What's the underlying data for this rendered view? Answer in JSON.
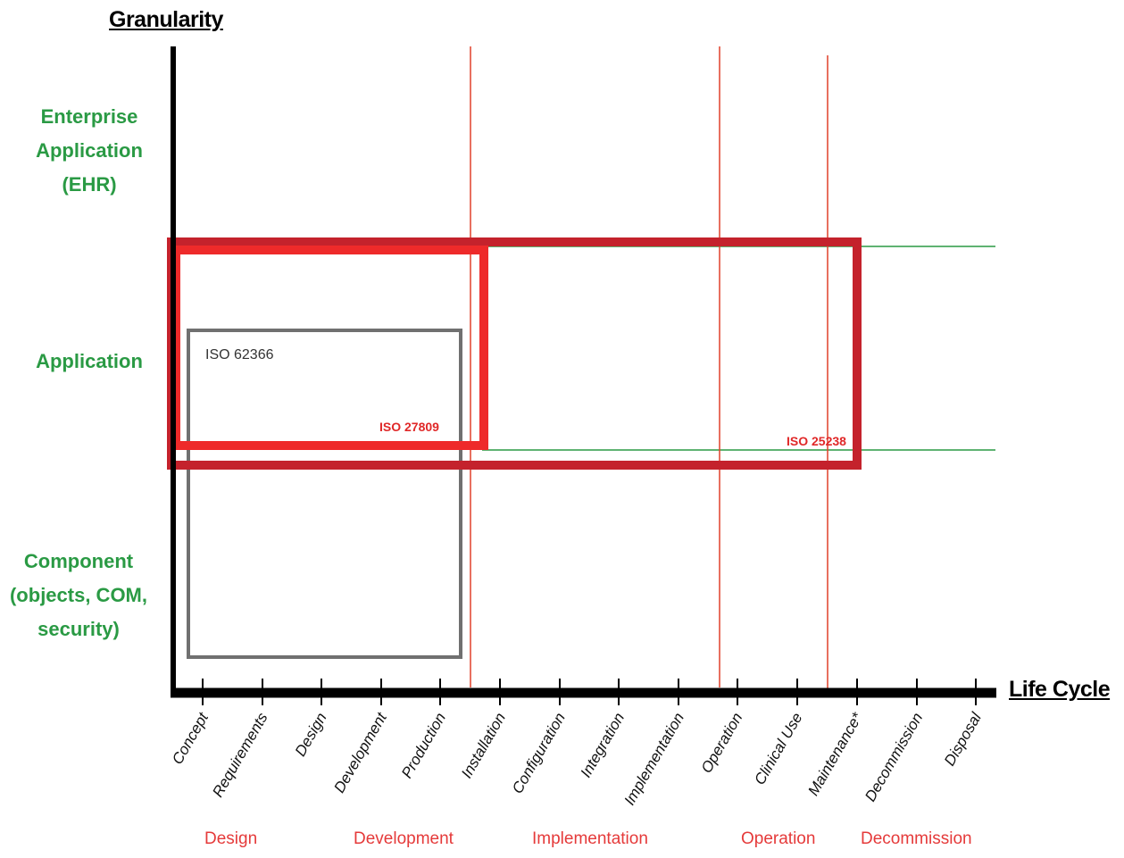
{
  "axes": {
    "y_title": "Granularity",
    "x_title": "Life Cycle"
  },
  "granularity_levels": [
    "Enterprise Application (EHR)",
    "Application",
    "Component (objects, COM, security)"
  ],
  "granularity_lines": {
    "enterprise": [
      "Enterprise",
      "Application",
      "(EHR)"
    ],
    "application": [
      "Application"
    ],
    "component": [
      "Component",
      "(objects, COM,",
      "security)"
    ]
  },
  "lifecycle_stages": [
    "Concept",
    "Requirements",
    "Design",
    "Development",
    "Production",
    "Installation",
    "Configuration",
    "Integration",
    "Implementation",
    "Operation",
    "Clinical Use",
    "Maintenance*",
    "Decommission",
    "Disposal"
  ],
  "phases": [
    "Design",
    "Development",
    "Implementation",
    "Operation",
    "Decommission"
  ],
  "standards": {
    "iso_62366": "ISO 62366",
    "iso_27809": "ISO 27809",
    "iso_25238": "ISO 25238"
  },
  "colors": {
    "granularity_text": "#2a9a44",
    "phase_text": "#e53a3a",
    "phase_divider": "#e0402a",
    "level_divider": "#2a9a44",
    "iso_27809_box": "#ee2a2a",
    "iso_25238_box": "#c4222c",
    "iso_62366_box": "#707070"
  }
}
